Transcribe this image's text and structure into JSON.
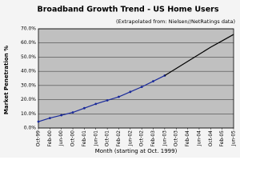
{
  "chart_data": {
    "type": "line",
    "title": "Broadband Growth Trend - US Home Users",
    "subtitle": "(Extrapolated from: Nielsen//NetRatings data)",
    "ylabel": "Market Penetration %",
    "xlabel": "Month (starting at Oct. 1999)",
    "categories": [
      "Oct-99",
      "Feb-00",
      "Jun-00",
      "Oct-00",
      "Feb-01",
      "Jun-01",
      "Oct-01",
      "Feb-02",
      "Jun-02",
      "Oct-02",
      "Feb-03",
      "Jun-03",
      "Oct-03",
      "Feb-04",
      "Jun-04",
      "Oct-04",
      "Feb-05",
      "Jun-05"
    ],
    "series": [
      {
        "color": "#1a2a9a",
        "values": [
          4.5,
          7,
          9,
          11,
          14,
          17,
          19.5,
          22,
          25.5,
          29,
          33,
          37,
          null,
          null,
          null,
          null,
          null,
          null
        ]
      },
      {
        "color": "#000000",
        "values": [
          null,
          null,
          null,
          null,
          null,
          null,
          null,
          null,
          null,
          null,
          null,
          37,
          42,
          47,
          52,
          57,
          61.5,
          66
        ]
      }
    ],
    "ylim": [
      0,
      70
    ],
    "yticks": [
      {
        "value": 0,
        "label": "0.0%"
      },
      {
        "value": 10,
        "label": "10.0%"
      },
      {
        "value": 20,
        "label": "20.0%"
      },
      {
        "value": 30,
        "label": "30.0%"
      },
      {
        "value": 40,
        "label": "40.0%"
      },
      {
        "value": 50,
        "label": "50.0%"
      },
      {
        "value": 60,
        "label": "60.0%"
      },
      {
        "value": 70,
        "label": "70.0%"
      }
    ],
    "grid": true,
    "plot_background": "#c0c0c0"
  }
}
